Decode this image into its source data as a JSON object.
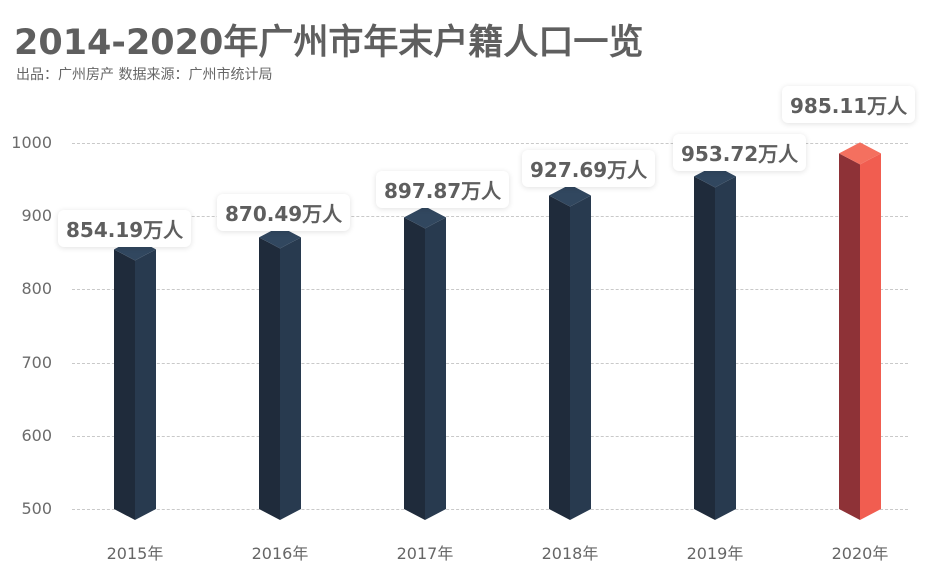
{
  "header": {
    "title": "2014-2020年广州市年末户籍人口一览",
    "subtitle": "出品：广州房产   数据来源：广州市统计局"
  },
  "axis": {
    "yticks": [
      "1000",
      "900",
      "800",
      "700",
      "600",
      "500"
    ],
    "xticks": [
      "2015年",
      "2016年",
      "2017年",
      "2018年",
      "2019年",
      "2020年"
    ]
  },
  "labels": [
    "854.19万人",
    "870.49万人",
    "897.87万人",
    "927.69万人",
    "953.72万人",
    "985.11万人"
  ],
  "colors": {
    "bar_left": "#1f2b3b",
    "bar_right": "#283a4f",
    "bar_top": "#31475f",
    "highlight_left": "#8e3237",
    "highlight_right": "#f15d50",
    "highlight_top": "#f4705f",
    "grid": "#c9c9c9"
  },
  "chart_data": {
    "type": "bar",
    "title": "2014-2020年广州市年末户籍人口一览",
    "subtitle": "出品：广州房产   数据来源：广州市统计局",
    "categories": [
      "2015年",
      "2016年",
      "2017年",
      "2018年",
      "2019年",
      "2020年"
    ],
    "values": [
      854.19,
      870.49,
      897.87,
      927.69,
      953.72,
      985.11
    ],
    "unit": "万人",
    "data_labels": [
      "854.19万人",
      "870.49万人",
      "897.87万人",
      "927.69万人",
      "953.72万人",
      "985.11万人"
    ],
    "xlabel": "",
    "ylabel": "",
    "ylim": [
      500,
      1000
    ],
    "yticks": [
      500,
      600,
      700,
      800,
      900,
      1000
    ],
    "grid": true,
    "legend": "none",
    "style": "3d isometric columns, last bar highlighted red"
  }
}
